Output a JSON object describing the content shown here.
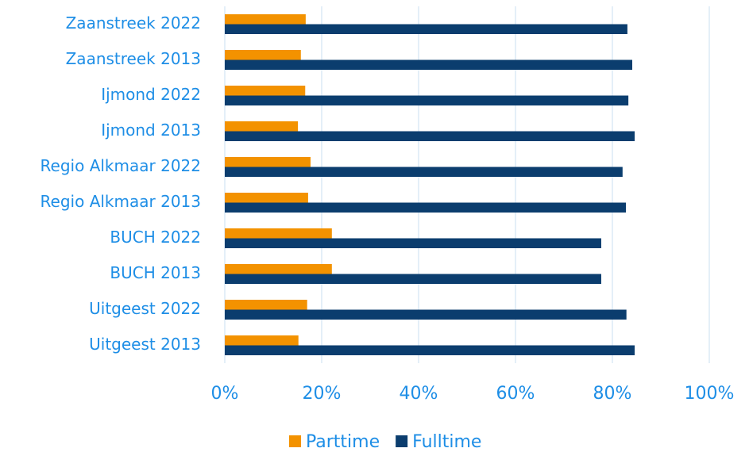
{
  "chart_data": {
    "type": "bar",
    "orientation": "horizontal",
    "categories": [
      "Zaanstreek 2022",
      "Zaanstreek 2013",
      "Ijmond 2022",
      "Ijmond 2013",
      "Regio Alkmaar 2022",
      "Regio Alkmaar 2013",
      "BUCH 2022",
      "BUCH 2013",
      "Uitgeest 2022",
      "Uitgeest 2013"
    ],
    "series": [
      {
        "name": "Parttime",
        "color": "#f39200",
        "values": [
          16.7,
          15.7,
          16.6,
          15.1,
          17.7,
          17.2,
          22.1,
          22.1,
          17.0,
          15.2
        ]
      },
      {
        "name": "Fulltime",
        "color": "#0b3d6e",
        "values": [
          83.1,
          84.1,
          83.3,
          84.6,
          82.1,
          82.8,
          77.7,
          77.7,
          82.9,
          84.6
        ]
      }
    ],
    "xlim": [
      0,
      100
    ],
    "xticks": [
      {
        "value": 0,
        "label": "0%"
      },
      {
        "value": 20,
        "label": "20%"
      },
      {
        "value": 40,
        "label": "40%"
      },
      {
        "value": 60,
        "label": "60%"
      },
      {
        "value": 80,
        "label": "80%"
      },
      {
        "value": 100,
        "label": "100%"
      }
    ],
    "grid": true,
    "legend": "bottom"
  }
}
